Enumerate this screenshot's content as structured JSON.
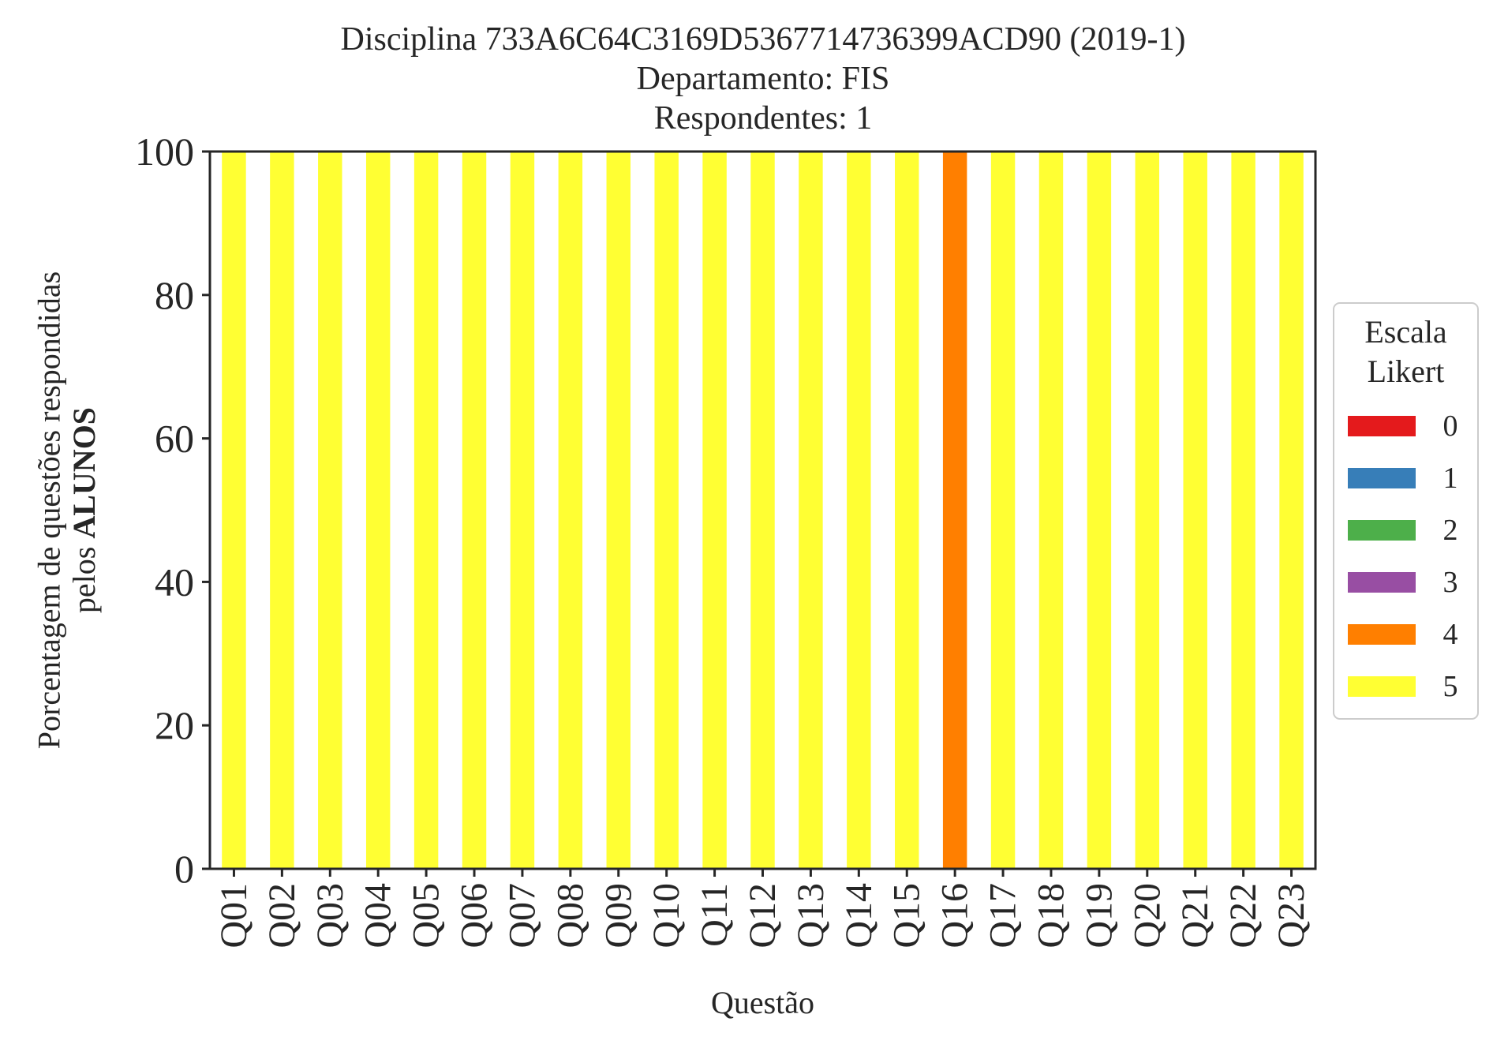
{
  "chart_data": {
    "type": "bar",
    "stacked": true,
    "title_lines": [
      "Disciplina 733A6C64C3169D5367714736399ACD90 (2019-1)",
      "Departamento: FIS",
      "Respondentes: 1"
    ],
    "xlabel": "Questão",
    "ylabel_line1": "Porcentagem de questões respondidas",
    "ylabel_line2_prefix": "pelos ",
    "ylabel_line2_bold": "ALUNOS",
    "ylim": [
      0,
      100
    ],
    "yticks": [
      "0",
      "20",
      "40",
      "60",
      "80",
      "100"
    ],
    "grid": false,
    "categories": [
      "Q01",
      "Q02",
      "Q03",
      "Q04",
      "Q05",
      "Q06",
      "Q07",
      "Q08",
      "Q09",
      "Q10",
      "Q11",
      "Q12",
      "Q13",
      "Q14",
      "Q15",
      "Q16",
      "Q17",
      "Q18",
      "Q19",
      "Q20",
      "Q21",
      "Q22",
      "Q23"
    ],
    "series": [
      {
        "name": "0",
        "color": "#e41a1c",
        "values": [
          0,
          0,
          0,
          0,
          0,
          0,
          0,
          0,
          0,
          0,
          0,
          0,
          0,
          0,
          0,
          0,
          0,
          0,
          0,
          0,
          0,
          0,
          0
        ]
      },
      {
        "name": "1",
        "color": "#377eb8",
        "values": [
          0,
          0,
          0,
          0,
          0,
          0,
          0,
          0,
          0,
          0,
          0,
          0,
          0,
          0,
          0,
          0,
          0,
          0,
          0,
          0,
          0,
          0,
          0
        ]
      },
      {
        "name": "2",
        "color": "#4daf4a",
        "values": [
          0,
          0,
          0,
          0,
          0,
          0,
          0,
          0,
          0,
          0,
          0,
          0,
          0,
          0,
          0,
          0,
          0,
          0,
          0,
          0,
          0,
          0,
          0
        ]
      },
      {
        "name": "3",
        "color": "#984ea3",
        "values": [
          0,
          0,
          0,
          0,
          0,
          0,
          0,
          0,
          0,
          0,
          0,
          0,
          0,
          0,
          0,
          0,
          0,
          0,
          0,
          0,
          0,
          0,
          0
        ]
      },
      {
        "name": "4",
        "color": "#ff7f00",
        "values": [
          0,
          0,
          0,
          0,
          0,
          0,
          0,
          0,
          0,
          0,
          0,
          0,
          0,
          0,
          0,
          100,
          0,
          0,
          0,
          0,
          0,
          0,
          0
        ]
      },
      {
        "name": "5",
        "color": "#ffff33",
        "values": [
          100,
          100,
          100,
          100,
          100,
          100,
          100,
          100,
          100,
          100,
          100,
          100,
          100,
          100,
          100,
          0,
          100,
          100,
          100,
          100,
          100,
          100,
          100
        ]
      }
    ],
    "legend": {
      "title_lines": [
        "Escala",
        "Likert"
      ],
      "placement": "right"
    }
  }
}
